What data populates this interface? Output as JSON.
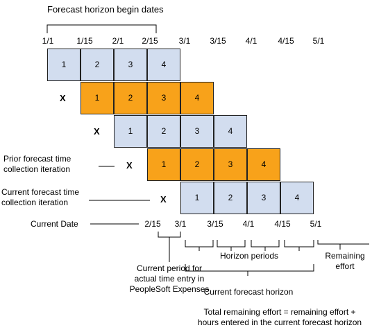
{
  "title": "Forecast horizon begin dates",
  "top_dates": [
    "1/1",
    "1/15",
    "2/1",
    "2/15",
    "3/1",
    "3/15",
    "4/1",
    "4/15",
    "5/1"
  ],
  "rows": [
    {
      "label": "",
      "x_mark": "",
      "color": "blue",
      "cells": [
        "1",
        "2",
        "3",
        "4"
      ]
    },
    {
      "label": "",
      "x_mark": "X",
      "color": "orange",
      "cells": [
        "1",
        "2",
        "3",
        "4"
      ]
    },
    {
      "label": "",
      "x_mark": "X",
      "color": "blue",
      "cells": [
        "1",
        "2",
        "3",
        "4"
      ]
    },
    {
      "label_line1": "Prior forecast time",
      "label_line2": "collection iteration",
      "x_mark": "X",
      "color": "orange",
      "cells": [
        "1",
        "2",
        "3",
        "4"
      ]
    },
    {
      "label_line1": "Current forecast time",
      "label_line2": "collection iteration",
      "x_mark": "X",
      "color": "blue",
      "cells": [
        "1",
        "2",
        "3",
        "4"
      ]
    }
  ],
  "current_date": {
    "label": "Current Date",
    "dates": [
      "2/15",
      "3/1",
      "3/15",
      "4/1",
      "4/15",
      "5/1"
    ]
  },
  "annotations": {
    "current_period": [
      "Current period for",
      "actual time entry in",
      "PeopleSoft Expenses"
    ],
    "horizon_periods": "Horizon periods",
    "remaining_effort": [
      "Remaining",
      "effort"
    ],
    "current_forecast_horizon": "Current forecast horizon",
    "total_remaining": [
      "Total remaining effort = remaining effort +",
      "hours entered in the current forecast horizon"
    ]
  },
  "colors": {
    "blue_cell": "#d2ddef",
    "orange_cell": "#f8a21a",
    "border": "#222222"
  }
}
